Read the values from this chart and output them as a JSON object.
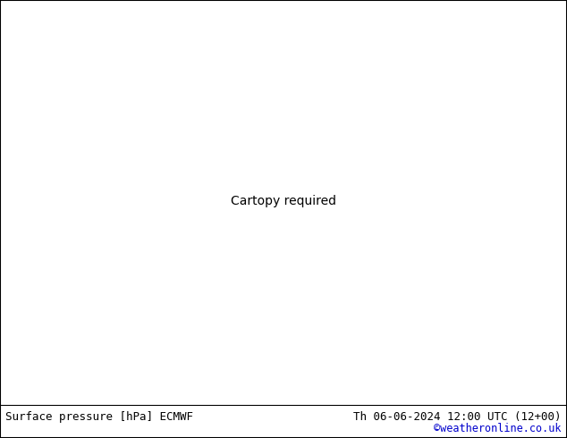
{
  "fig_width": 6.34,
  "fig_height": 4.9,
  "dpi": 100,
  "background_color": "#ffffff",
  "land_color": "#c8e8a0",
  "ocean_color": "#d8d8d8",
  "mountain_color": "#b0b0b0",
  "isobar_blue": "#0000cc",
  "isobar_red": "#cc0000",
  "isobar_black": "#000000",
  "label_left": "Surface pressure [hPa] ECMWF",
  "label_right": "Th 06-06-2024 12:00 UTC (12+00)",
  "label_copyright": "©weatheronline.co.uk",
  "label_color": "#000000",
  "copyright_color": "#0000cc",
  "label_fontsize": 9.0,
  "bottom_bar_height": 0.082,
  "lon_min": -30,
  "lon_max": 50,
  "lat_min": 27,
  "lat_max": 73
}
